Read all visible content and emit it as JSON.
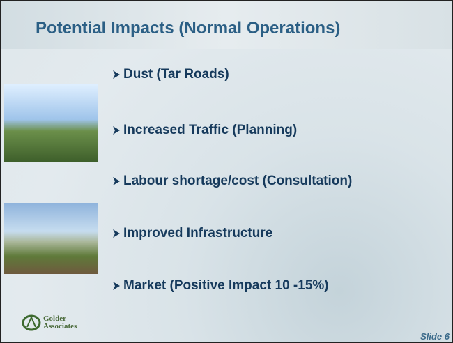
{
  "header": {
    "title": "Potential Impacts (Normal Operations)"
  },
  "bullets": [
    "Dust   (Tar Roads)",
    "Increased Traffic (Planning)",
    "Labour shortage/cost (Consultation)",
    "Improved Infrastructure",
    "Market (Positive Impact 10 -15%)"
  ],
  "logo": {
    "line1": "Golder",
    "line2": "Associates"
  },
  "footer": {
    "slide": "Slide 6"
  }
}
